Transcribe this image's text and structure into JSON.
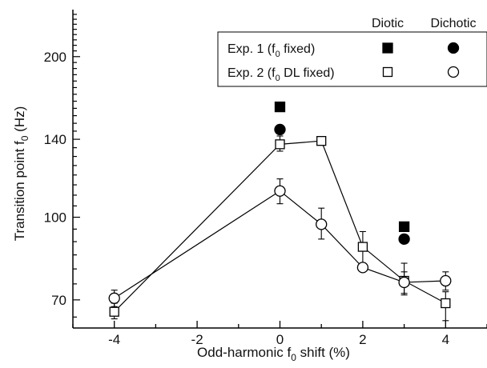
{
  "chart_data": {
    "type": "scatter",
    "xlabel": {
      "pre": "Odd-harmonic f",
      "sub": "0",
      "post": " shift (%)"
    },
    "ylabel": {
      "pre": "Transition point f",
      "sub": "0",
      "post": " (Hz)"
    },
    "xlim": [
      -5,
      5
    ],
    "ylim": [
      62,
      245
    ],
    "y_scale": "log",
    "xticks": [
      -4,
      -2,
      0,
      2,
      4
    ],
    "yticks": [
      70,
      100,
      140,
      200
    ],
    "xtick_labels": [
      "-4",
      "-2",
      "0",
      "2",
      "4"
    ],
    "ytick_labels": [
      "70",
      "100",
      "140",
      "200"
    ],
    "grid": false,
    "legend_position": "top-right",
    "legend": {
      "col_headers": [
        "Diotic",
        "Dichotic"
      ],
      "rows": [
        {
          "pre": "Exp. 1 (f",
          "sub": "0",
          "post": " fixed)",
          "diotic_marker": "filled-square",
          "dichotic_marker": "filled-circle"
        },
        {
          "pre": "Exp. 2 (f",
          "sub": "0",
          "post": " DL fixed)",
          "diotic_marker": "open-square",
          "dichotic_marker": "open-circle"
        }
      ]
    },
    "series": [
      {
        "id": "exp2-diotic",
        "marker": "open-square",
        "connected": true,
        "points": [
          {
            "x": -4,
            "y": 66.5,
            "err_lo": 64.5,
            "err_hi": 69
          },
          {
            "x": 0,
            "y": 137,
            "err_lo": 133,
            "err_hi": 142
          },
          {
            "x": 1,
            "y": 139,
            "err_lo": 139,
            "err_hi": 139
          },
          {
            "x": 2,
            "y": 88,
            "err_lo": 81,
            "err_hi": 94
          },
          {
            "x": 3,
            "y": 76,
            "err_lo": 72,
            "err_hi": 79
          },
          {
            "x": 4,
            "y": 69,
            "err_lo": 64,
            "err_hi": 72.5
          }
        ]
      },
      {
        "id": "exp2-dichotic",
        "marker": "open-circle",
        "connected": true,
        "points": [
          {
            "x": -4,
            "y": 70.5,
            "err_lo": 68,
            "err_hi": 73
          },
          {
            "x": 0,
            "y": 112,
            "err_lo": 106,
            "err_hi": 118
          },
          {
            "x": 1,
            "y": 97,
            "err_lo": 91,
            "err_hi": 104
          },
          {
            "x": 2,
            "y": 80.5,
            "err_lo": 80.5,
            "err_hi": 80.5
          },
          {
            "x": 3,
            "y": 75.5,
            "err_lo": 71.5,
            "err_hi": 82
          },
          {
            "x": 4,
            "y": 76,
            "err_lo": 73,
            "err_hi": 79
          }
        ]
      },
      {
        "id": "exp1-diotic",
        "marker": "filled-square",
        "connected": false,
        "points": [
          {
            "x": 0,
            "y": 161
          },
          {
            "x": 3,
            "y": 96
          }
        ]
      },
      {
        "id": "exp1-dichotic",
        "marker": "filled-circle",
        "connected": false,
        "points": [
          {
            "x": 0,
            "y": 146
          },
          {
            "x": 3,
            "y": 91
          }
        ]
      }
    ]
  }
}
